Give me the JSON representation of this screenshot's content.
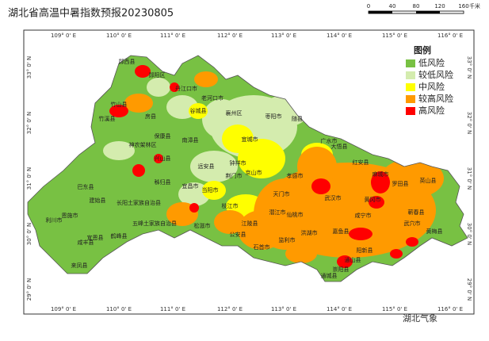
{
  "header": {
    "title": "湖北省高温中暑指数预报20230805"
  },
  "scale": {
    "labels": [
      "0",
      "40",
      "80",
      "120",
      "160"
    ],
    "unit": "千米"
  },
  "graticule": {
    "lon": [
      "109° 0' E",
      "110° 0' E",
      "111° 0' E",
      "112° 0' E",
      "113° 0' E",
      "114° 0' E",
      "115° 0' E",
      "116° 0' E"
    ],
    "lat": [
      "33° 0' N",
      "32° 0' N",
      "31° 0' N",
      "30° 0' N",
      "29° 0' N"
    ]
  },
  "legend": {
    "title": "图例",
    "items": [
      {
        "label": "低风险",
        "color": "#78c143"
      },
      {
        "label": "较低风险",
        "color": "#d4ecae"
      },
      {
        "label": "中风险",
        "color": "#ffff00"
      },
      {
        "label": "较高风险",
        "color": "#ff9a00"
      },
      {
        "label": "高风险",
        "color": "#ff0000"
      }
    ]
  },
  "places": [
    "郧西县",
    "郧阳区",
    "丹江口市",
    "老河口市",
    "竹溪县",
    "竹山县",
    "房县",
    "谷城县",
    "襄州区",
    "枣阳市",
    "保康县",
    "南漳县",
    "宜城市",
    "随县",
    "广水市",
    "神农架林区",
    "兴山县",
    "远安县",
    "钟祥市",
    "京山市",
    "大悟县",
    "红安县",
    "麻城市",
    "巴东县",
    "秭归县",
    "宜昌市",
    "当阳市",
    "荆门市",
    "孝感市",
    "黄冈市",
    "恩施市",
    "建始县",
    "利川市",
    "长阳土家族自治县",
    "枝江市",
    "天门市",
    "武汉市",
    "罗田县",
    "英山县",
    "咸丰县",
    "宣恩县",
    "鹤峰县",
    "五峰土家族自治县",
    "松滋市",
    "公安县",
    "石首市",
    "江陵县",
    "潜江市",
    "仙桃市",
    "洪湖市",
    "嘉鱼县",
    "咸宁市",
    "阳新县",
    "武穴市",
    "黄梅县",
    "蕲春县",
    "通山县",
    "崇阳县",
    "通城县",
    "来凤县",
    "监利市"
  ],
  "watermark": "湖北气象"
}
